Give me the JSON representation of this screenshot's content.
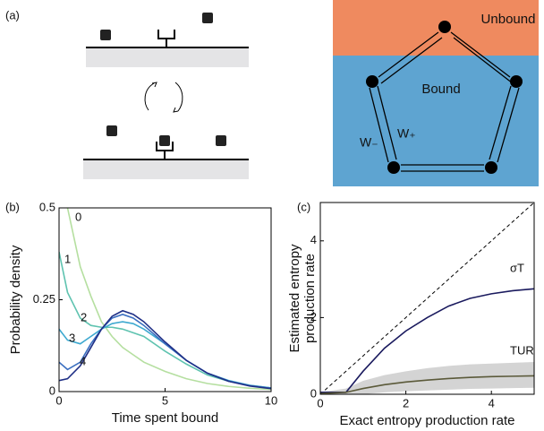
{
  "figure": {
    "panel_labels": [
      "(a)",
      "(b)",
      "(c)"
    ]
  },
  "diagram": {
    "unbound": "Unbound",
    "bound": "Bound",
    "w_minus": "W₋",
    "w_plus": "W₊"
  },
  "chart_data": [
    {
      "type": "line",
      "xlabel": "Time spent bound",
      "ylabel": [
        "Probability density"
      ],
      "x": [
        0,
        0.4,
        1,
        1.5,
        2,
        2.5,
        3,
        3.5,
        4,
        5,
        6,
        7,
        8,
        9,
        10
      ],
      "xlim": [
        0,
        10
      ],
      "ylim": [
        0,
        0.5
      ],
      "xticks": [
        0,
        5,
        10
      ],
      "yticks": [
        0,
        0.25,
        0.5
      ],
      "series": [
        {
          "name": "0",
          "color": "#b5dfa0",
          "values": [
            null,
            0.5,
            0.34,
            0.26,
            0.19,
            0.15,
            0.12,
            0.1,
            0.08,
            0.055,
            0.035,
            0.022,
            0.014,
            0.009,
            0.006
          ]
        },
        {
          "name": "1",
          "color": "#5fc3b0",
          "values": [
            0.38,
            0.27,
            0.2,
            0.18,
            0.175,
            0.175,
            0.17,
            0.16,
            0.15,
            0.11,
            0.075,
            0.045,
            0.028,
            0.017,
            0.01
          ]
        },
        {
          "name": "2",
          "color": "#3ea9d0",
          "values": [
            0.17,
            0.14,
            0.13,
            0.15,
            0.17,
            0.185,
            0.19,
            0.185,
            0.17,
            0.13,
            0.085,
            0.05,
            0.03,
            0.017,
            0.01
          ]
        },
        {
          "name": "3",
          "color": "#3b6fc0",
          "values": [
            0.08,
            0.06,
            0.08,
            0.13,
            0.17,
            0.2,
            0.21,
            0.2,
            0.18,
            0.13,
            0.085,
            0.05,
            0.028,
            0.016,
            0.009
          ]
        },
        {
          "name": "4",
          "color": "#1f2f86",
          "values": [
            0.03,
            0.035,
            0.07,
            0.12,
            0.17,
            0.205,
            0.22,
            0.21,
            0.19,
            0.135,
            0.085,
            0.05,
            0.028,
            0.015,
            0.008
          ]
        }
      ]
    },
    {
      "type": "line",
      "xlabel": "Exact entropy production rate",
      "ylabel": [
        "Estimated entropy",
        "production rate"
      ],
      "x": [
        0,
        0.6,
        1,
        1.5,
        2,
        2.5,
        3,
        3.5,
        4,
        4.5,
        5
      ],
      "xlim": [
        0,
        5
      ],
      "ylim": [
        0,
        5
      ],
      "xticks": [
        0,
        2,
        4
      ],
      "yticks": [
        0,
        2,
        4
      ],
      "series": [
        {
          "color": "#000000",
          "dash": true,
          "values": [
            0,
            0.6,
            1,
            1.5,
            2,
            2.5,
            3,
            3.5,
            4,
            4.5,
            5
          ]
        },
        {
          "name": "σT",
          "color": "#1a1a5e",
          "values": [
            0.05,
            0.05,
            0.6,
            1.2,
            1.65,
            2.0,
            2.3,
            2.5,
            2.62,
            2.7,
            2.75
          ]
        },
        {
          "name": "TUR",
          "color": "#5b5a3a",
          "band_color": "#d4d4d4",
          "values": [
            0.02,
            0.05,
            0.15,
            0.25,
            0.32,
            0.37,
            0.41,
            0.44,
            0.46,
            0.47,
            0.48
          ],
          "upper": [
            0.05,
            0.15,
            0.35,
            0.5,
            0.6,
            0.68,
            0.74,
            0.78,
            0.8,
            0.82,
            0.84
          ],
          "lower": [
            0,
            0,
            0,
            0.05,
            0.08,
            0.1,
            0.12,
            0.14,
            0.15,
            0.16,
            0.17
          ]
        }
      ]
    }
  ]
}
